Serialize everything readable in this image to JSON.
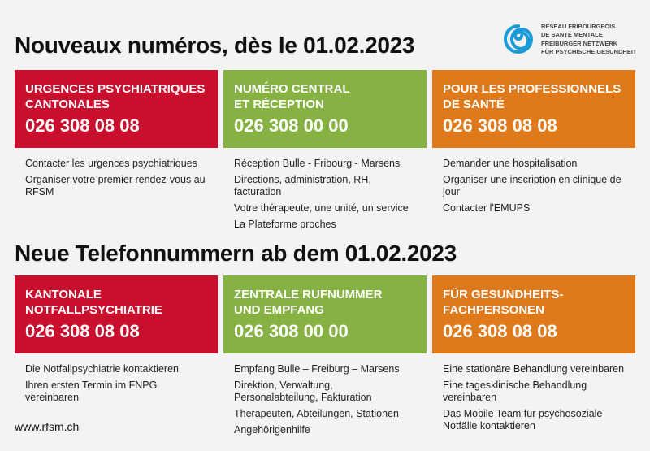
{
  "logo": {
    "line1": "RÉSEAU FRIBOURGEOIS",
    "line2": "DE SANTÉ MENTALE",
    "line3": "FREIBURGER NETZWERK",
    "line4": "FÜR PSYCHISCHE GESUNDHEIT",
    "color": "#1a9ad6"
  },
  "sections": [
    {
      "title": "Nouveaux numéros, dès le 01.02.2023",
      "cards": [
        {
          "heading": "URGENCES PSYCHIATRIQUES\nCANTONALES",
          "number": "026 308 08 08",
          "color": "#c8102e",
          "items": [
            "Contacter les urgences psychiatriques",
            "Organiser votre premier rendez-vous au RFSM"
          ]
        },
        {
          "heading": "NUMÉRO CENTRAL\nET RÉCEPTION",
          "number": "026 308 00 00",
          "color": "#86b244",
          "items": [
            "Réception Bulle - Fribourg - Marsens",
            "Directions, administration, RH, facturation",
            "Votre thérapeute, une unité, un service",
            "La Plateforme proches"
          ]
        },
        {
          "heading": "POUR LES PROFESSIONNELS\nDE SANTÉ",
          "number": "026 308 08 08",
          "color": "#df7a1c",
          "items": [
            "Demander une hospitalisation",
            "Organiser une inscription en clinique de jour",
            "Contacter l'EMUPS"
          ]
        }
      ]
    },
    {
      "title": "Neue Telefonnummern ab dem 01.02.2023",
      "cards": [
        {
          "heading": "KANTONALE\nNOTFALLPSYCHIATRIE",
          "number": "026 308 08 08",
          "color": "#c8102e",
          "items": [
            "Die Notfallpsychiatrie kontaktieren",
            "Ihren ersten Termin im FNPG vereinbaren"
          ]
        },
        {
          "heading": "ZENTRALE RUFNUMMER\nUND EMPFANG",
          "number": "026 308 00 00",
          "color": "#86b244",
          "items": [
            "Empfang Bulle – Freiburg – Marsens",
            "Direktion, Verwaltung, Personalabteilung, Fakturation",
            "Therapeuten, Abteilungen, Stationen",
            "Angehörigenhilfe"
          ]
        },
        {
          "heading": "FÜR GESUNDHEITS-\nFACHPERSONEN",
          "number": "026 308 08 08",
          "color": "#df7a1c",
          "items": [
            "Eine stationäre Behandlung vereinbaren",
            "Eine tagesklinische Behandlung vereinbaren",
            "Das Mobile Team für psychosoziale Notfälle kontaktieren"
          ]
        }
      ]
    }
  ],
  "footer": {
    "url": "www.rfsm.ch"
  }
}
